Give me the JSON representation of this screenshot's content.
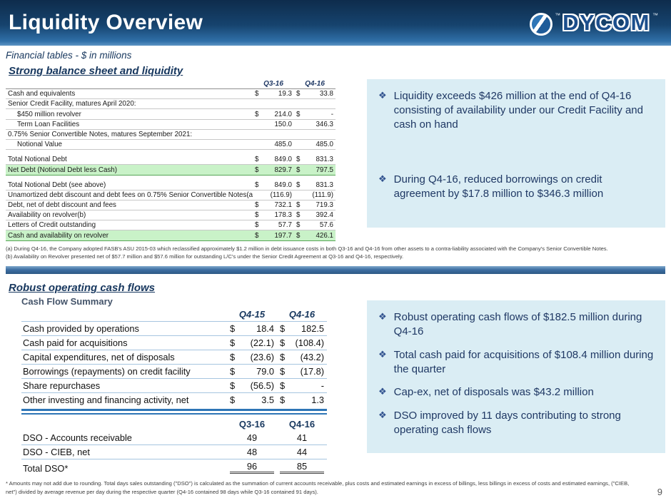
{
  "colors": {
    "banner_navy": "#16436E",
    "accent_blue": "#2E75B6",
    "heading_navy": "#17375E",
    "callout_bg": "#DAEDF4",
    "callout_text": "#1F3864",
    "green_row_bg": "#C9F2C8",
    "green_row_border": "#56A556"
  },
  "icons": {
    "bullet_glyph": "❖"
  },
  "header": {
    "title": "Liquidity Overview",
    "logo_text": "DYCOM",
    "trademark": "™"
  },
  "subtitle": "Financial tables - $ in millions",
  "balance_section": {
    "heading": "Strong balance sheet and liquidity",
    "col_headers": [
      "Q3-16",
      "Q4-16"
    ],
    "rows": [
      {
        "label": "Cash and equivalents",
        "v1": [
          "$",
          "19.3"
        ],
        "v2": [
          "$",
          "33.8"
        ]
      },
      {
        "label": "Senior Credit Facility, matures April 2020:"
      },
      {
        "label": "$450 million revolver",
        "cls": "indent",
        "v1": [
          "$",
          "214.0"
        ],
        "v2": [
          "$",
          "-"
        ]
      },
      {
        "label": "Term Loan Facilities",
        "cls": "indent",
        "v1": [
          "",
          "150.0"
        ],
        "v2": [
          "",
          "346.3"
        ]
      },
      {
        "label": "0.75% Senior Convertible Notes, matures September 2021:"
      },
      {
        "label": "Notional Value",
        "cls": "indent",
        "v1": [
          "",
          "485.0"
        ],
        "v2": [
          "",
          "485.0"
        ]
      },
      {
        "cls": "spacer"
      },
      {
        "label": "Total Notional Debt",
        "v1": [
          "$",
          "849.0"
        ],
        "v2": [
          "$",
          "831.3"
        ]
      },
      {
        "label": "Net Debt (Notional Debt less Cash)",
        "cls": "green",
        "v1": [
          "$",
          "829.7"
        ],
        "v2": [
          "$",
          "797.5"
        ]
      },
      {
        "cls": "spacer"
      },
      {
        "label": "Total Notional Debt (see above)",
        "v1": [
          "$",
          "849.0"
        ],
        "v2": [
          "$",
          "831.3"
        ]
      },
      {
        "label": "Unamortized debt discount and debt fees on 0.75% Senior Convertible Notes(a)",
        "v1": [
          "",
          "(116.9)"
        ],
        "v2": [
          "",
          "(111.9)"
        ]
      },
      {
        "label": "Debt, net of debt discount and fees",
        "v1": [
          "$",
          "732.1"
        ],
        "v2": [
          "$",
          "719.3"
        ]
      },
      {
        "label": "Availability on revolver(b)",
        "v1": [
          "$",
          "178.3"
        ],
        "v2": [
          "$",
          "392.4"
        ]
      },
      {
        "label": "Letters of Credit outstanding",
        "v1": [
          "$",
          "57.7"
        ],
        "v2": [
          "$",
          "57.6"
        ]
      },
      {
        "label": "Cash and availability on revolver",
        "cls": "green",
        "v1": [
          "$",
          "197.7"
        ],
        "v2": [
          "$",
          "426.1"
        ]
      }
    ],
    "callouts": [
      "Liquidity exceeds $426 million at the end of Q4-16 consisting of availability under our Credit Facility and cash on hand",
      "During Q4-16, reduced borrowings on credit agreement by $17.8 million to $346.3 million"
    ],
    "footnotes": [
      "(a) During Q4-16, the Company adopted FASB's ASU 2015-03 which reclassified approximately $1.2 million in debt issuance costs in both Q3-16 and Q4-16 from other assets to a contra-liability associated with the Company's Senior Convertible Notes.",
      "(b) Availability on Revolver presented net of $57.7 million and $57.6 million for outstanding L/C's under the Senior Credit Agreement at Q3-16 and Q4-16, respectively."
    ]
  },
  "cashflow_section": {
    "heading": "Robust operating cash flows",
    "table_title": "Cash Flow Summary",
    "col_headers": [
      "Q4-15",
      "Q4-16"
    ],
    "rows": [
      {
        "label": "Cash provided by operations",
        "v1": [
          "$",
          "18.4"
        ],
        "v2": [
          "$",
          "182.5"
        ]
      },
      {
        "label": "Cash paid for acquisitions",
        "v1": [
          "$",
          "(22.1)"
        ],
        "v2": [
          "$",
          "(108.4)"
        ]
      },
      {
        "label": "Capital expenditures, net of disposals",
        "v1": [
          "$",
          "(23.6)"
        ],
        "v2": [
          "$",
          "(43.2)"
        ]
      },
      {
        "label": "Borrowings (repayments) on credit facility",
        "v1": [
          "$",
          "79.0"
        ],
        "v2": [
          "$",
          "(17.8)"
        ]
      },
      {
        "label": "Share repurchases",
        "v1": [
          "$",
          "(56.5)"
        ],
        "v2": [
          "$",
          "-"
        ]
      },
      {
        "label": "Other investing and financing activity, net",
        "v1": [
          "$",
          "3.5"
        ],
        "v2": [
          "$",
          "1.3"
        ]
      }
    ],
    "dso_col_headers": [
      "Q3-16",
      "Q4-16"
    ],
    "dso_rows": [
      {
        "label": "DSO - Accounts receivable",
        "v1": [
          "",
          "49"
        ],
        "v2": [
          "",
          "41"
        ]
      },
      {
        "label": "DSO - CIEB, net",
        "v1": [
          "",
          "48"
        ],
        "v2": [
          "",
          "44"
        ]
      },
      {
        "label": "Total DSO*",
        "cls": "total",
        "v1": [
          "",
          "96"
        ],
        "v2": [
          "",
          "85"
        ]
      }
    ],
    "callouts": [
      "Robust operating cash flows of $182.5 million during Q4-16",
      "Total cash paid for acquisitions of $108.4 million during the quarter",
      "Cap-ex, net of disposals was $43.2 million",
      "DSO improved by 11 days contributing to strong operating cash flows"
    ]
  },
  "footnote_bottom": "* Amounts may not add due to rounding. Total days sales outstanding (\"DSO\") is calculated as the summation of current accounts receivable, plus costs and estimated earnings in excess of billings, less billings in excess of costs and estimated earnings, (\"CIEB, net\") divided by average revenue per day during the respective quarter (Q4-16 contained 98 days while Q3-16 contained 91 days).",
  "page_number": "9"
}
